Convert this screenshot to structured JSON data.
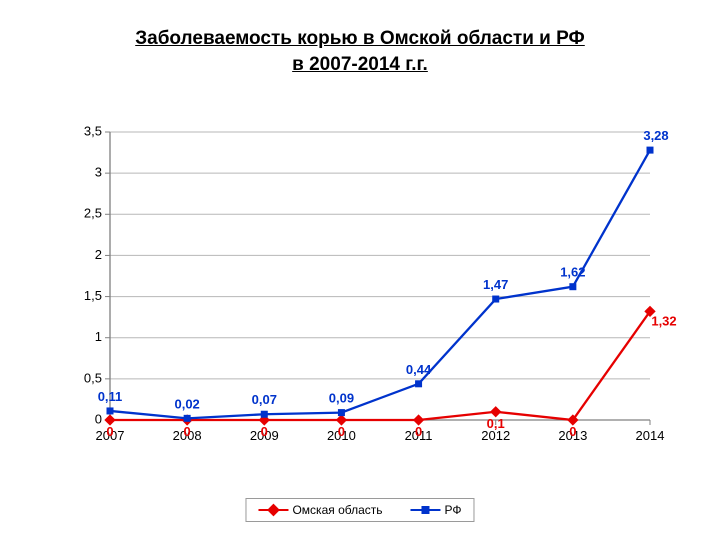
{
  "title": {
    "line1": "Заболеваемость корью в Омской области и РФ",
    "line2": "в 2007-2014 г.г.",
    "fontsize": 19,
    "color": "#000000",
    "underline": true
  },
  "chart": {
    "type": "line",
    "x": {
      "categories": [
        "2007",
        "2008",
        "2009",
        "2010",
        "2011",
        "2012",
        "2013",
        "2014"
      ],
      "label_fontsize": 13,
      "label_color": "#000000"
    },
    "y": {
      "min": 0,
      "max": 3.5,
      "ticks": [
        0,
        0.5,
        1,
        1.5,
        2,
        2.5,
        3,
        3.5
      ],
      "tick_labels": [
        "0",
        "0,5",
        "1",
        "1,5",
        "2",
        "2,5",
        "3",
        "3,5"
      ],
      "label_fontsize": 13,
      "label_color": "#000000"
    },
    "grid": {
      "horizontal": true,
      "color": "#b7b7b7"
    },
    "axes_color": "#808080",
    "background": "#ffffff",
    "series": [
      {
        "name": "Омская область",
        "color": "#e60000",
        "line_width": 2.3,
        "marker": {
          "shape": "diamond",
          "size": 8,
          "fill": "#e60000"
        },
        "values": [
          0,
          0,
          0,
          0,
          0,
          0.1,
          0,
          1.32
        ],
        "labels": [
          "0",
          "0",
          "0",
          "0",
          "0",
          "0,1",
          "0",
          "1,32"
        ],
        "label_color": "#e60000",
        "label_fontsize": 13,
        "label_weight": "bold",
        "label_dy": [
          16,
          16,
          16,
          16,
          16,
          16,
          16,
          14
        ],
        "label_dx": [
          0,
          0,
          0,
          0,
          0,
          0,
          0,
          14
        ]
      },
      {
        "name": "РФ",
        "color": "#0033cc",
        "line_width": 2.3,
        "marker": {
          "shape": "square",
          "size": 7,
          "fill": "#0033cc"
        },
        "values": [
          0.11,
          0.02,
          0.07,
          0.09,
          0.44,
          1.47,
          1.62,
          3.28
        ],
        "labels": [
          "0,11",
          "0,02",
          "0,07",
          "0,09",
          "0,44",
          "1,47",
          "1,62",
          "3,28"
        ],
        "label_color": "#0033cc",
        "label_fontsize": 13,
        "label_weight": "bold",
        "label_dy": [
          -10,
          -10,
          -10,
          -10,
          -10,
          -10,
          -10,
          -10
        ],
        "label_dx": [
          0,
          0,
          0,
          0,
          0,
          0,
          0,
          6
        ]
      }
    ],
    "legend": {
      "position": "bottom-center",
      "border_color": "#9a9a9a",
      "items": [
        {
          "label": "Омская область",
          "color": "#e60000",
          "marker": "diamond"
        },
        {
          "label": "РФ",
          "color": "#0033cc",
          "marker": "square"
        }
      ]
    }
  }
}
